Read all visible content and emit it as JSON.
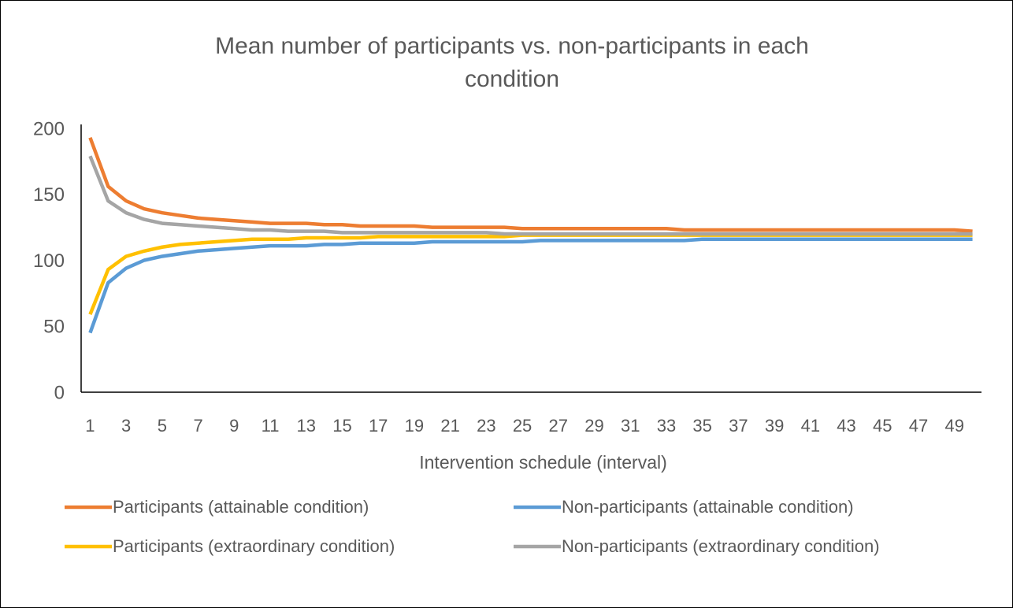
{
  "chart_data": {
    "type": "line",
    "title": "Mean number of participants vs. non-participants in each condition",
    "x_label": "Intervention schedule (interval)",
    "categories": [
      1,
      null,
      3,
      null,
      5,
      null,
      7,
      null,
      9,
      null,
      11,
      null,
      13,
      null,
      15,
      null,
      17,
      null,
      19,
      null,
      21,
      null,
      23,
      null,
      25,
      null,
      27,
      null,
      29,
      null,
      31,
      null,
      33,
      null,
      35,
      null,
      37,
      null,
      39,
      null,
      41,
      null,
      43,
      null,
      45,
      null,
      47,
      null,
      49,
      null
    ],
    "series": [
      {
        "name": "Participants (attainable condition)",
        "color": "#ED7D31",
        "values": [
          193,
          156,
          145,
          139,
          136,
          134,
          132,
          131,
          130,
          129,
          128,
          128,
          128,
          127,
          127,
          126,
          126,
          126,
          126,
          125,
          125,
          125,
          125,
          125,
          124,
          124,
          124,
          124,
          124,
          124,
          124,
          124,
          124,
          123,
          123,
          123,
          123,
          123,
          123,
          123,
          123,
          123,
          123,
          123,
          123,
          123,
          123,
          123,
          123,
          122
        ]
      },
      {
        "name": "Non-participants (attainable condition)",
        "color": "#5B9BD5",
        "values": [
          45,
          83,
          94,
          100,
          103,
          105,
          107,
          108,
          109,
          110,
          111,
          111,
          111,
          112,
          112,
          113,
          113,
          113,
          113,
          114,
          114,
          114,
          114,
          114,
          114,
          115,
          115,
          115,
          115,
          115,
          115,
          115,
          115,
          115,
          116,
          116,
          116,
          116,
          116,
          116,
          116,
          116,
          116,
          116,
          116,
          116,
          116,
          116,
          116,
          116
        ]
      },
      {
        "name": "Participants (extraordinary condition)",
        "color": "#FFC000",
        "values": [
          59,
          93,
          103,
          107,
          110,
          112,
          113,
          114,
          115,
          116,
          116,
          116,
          117,
          117,
          117,
          117,
          118,
          118,
          118,
          118,
          118,
          118,
          118,
          118,
          119,
          119,
          119,
          119,
          119,
          119,
          119,
          119,
          119,
          119,
          119,
          119,
          119,
          119,
          119,
          119,
          119,
          119,
          119,
          119,
          119,
          119,
          119,
          119,
          119,
          119
        ]
      },
      {
        "name": "Non-participants (extraordinary condition)",
        "color": "#A5A5A5",
        "values": [
          179,
          145,
          136,
          131,
          128,
          127,
          126,
          125,
          124,
          123,
          123,
          122,
          122,
          122,
          121,
          121,
          121,
          121,
          121,
          121,
          121,
          121,
          121,
          120,
          120,
          120,
          120,
          120,
          120,
          120,
          120,
          120,
          120,
          120,
          120,
          120,
          120,
          120,
          120,
          120,
          120,
          120,
          120,
          120,
          120,
          120,
          120,
          120,
          120,
          120
        ]
      }
    ],
    "ylim": [
      0,
      200
    ],
    "yticks": [
      0,
      50,
      100,
      150,
      200
    ],
    "grid": false
  }
}
